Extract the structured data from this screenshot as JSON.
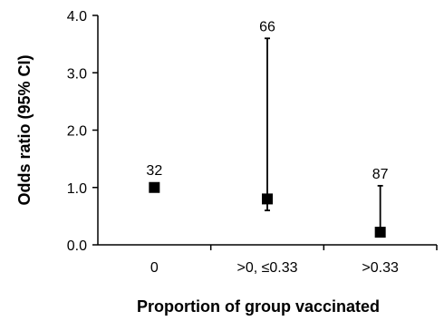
{
  "chart_data": {
    "type": "scatter",
    "title": "",
    "xlabel": "Proportion of group vaccinated",
    "ylabel": "Odds ratio (95% CI)",
    "categories": [
      "0",
      ">0, ≤0.33",
      ">0.33"
    ],
    "y_ticks": [
      "0.0",
      "1.0",
      "2.0",
      "3.0",
      "4.0"
    ],
    "ylim": [
      0,
      4
    ],
    "grid": false,
    "legend": "none",
    "series": [
      {
        "values": [
          1.0,
          0.8,
          0.22
        ],
        "ci_lower": [
          null,
          0.6,
          0.22
        ],
        "ci_upper": [
          null,
          3.6,
          1.03
        ],
        "labels": [
          "32",
          "66",
          "87"
        ]
      }
    ],
    "marker_color": "#000000"
  }
}
